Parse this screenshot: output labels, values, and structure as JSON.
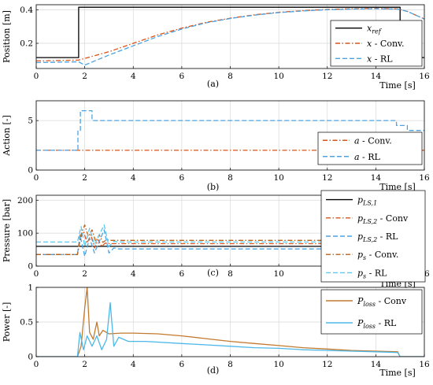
{
  "chart_data": [
    {
      "type": "line",
      "panel": "(a)",
      "xlabel": "Time [s]",
      "ylabel": "Position [m]",
      "xlim": [
        0,
        16
      ],
      "ylim": [
        0.05,
        0.43
      ],
      "xticks": [
        0,
        2,
        4,
        6,
        8,
        10,
        12,
        14,
        16
      ],
      "yticks": [
        0.2,
        0.4
      ],
      "ytick_labels": [
        "0.2",
        "0.4"
      ],
      "grid": true,
      "legend_position": "right",
      "series": [
        {
          "key": "x_ref",
          "label_main": "x",
          "label_sub": "ref",
          "label_suffix": "",
          "color": "#000000",
          "style": "solid",
          "x": [
            0,
            1.75,
            1.75,
            15.0,
            15.0,
            16
          ],
          "y": [
            0.115,
            0.115,
            0.415,
            0.415,
            0.115,
            0.115
          ]
        },
        {
          "key": "x_conv",
          "label_main": "x",
          "label_sub": "",
          "label_suffix": " - Conv.",
          "color": "#D95319",
          "style": "dashdot",
          "x": [
            0,
            1.75,
            2,
            3,
            4,
            5,
            6,
            7,
            8,
            9,
            10,
            11,
            12,
            13,
            14,
            14.9,
            15.3,
            16
          ],
          "y": [
            0.095,
            0.1,
            0.11,
            0.15,
            0.2,
            0.25,
            0.29,
            0.325,
            0.35,
            0.37,
            0.385,
            0.395,
            0.402,
            0.406,
            0.408,
            0.405,
            0.39,
            0.345
          ]
        },
        {
          "key": "x_rl",
          "label_main": "x",
          "label_sub": "",
          "label_suffix": " - RL",
          "color": "#4DA3E0",
          "style": "dashed",
          "x": [
            0,
            1.75,
            2,
            3,
            4,
            5,
            6,
            7,
            8,
            9,
            10,
            11,
            12,
            13,
            14,
            14.9,
            15.3,
            16
          ],
          "y": [
            0.085,
            0.09,
            0.07,
            0.13,
            0.185,
            0.24,
            0.285,
            0.322,
            0.348,
            0.368,
            0.383,
            0.393,
            0.4,
            0.404,
            0.406,
            0.404,
            0.39,
            0.345
          ]
        }
      ]
    },
    {
      "type": "line",
      "panel": "(b)",
      "xlabel": "Time [s]",
      "ylabel": "Action [-]",
      "xlim": [
        0,
        16
      ],
      "ylim": [
        0,
        7
      ],
      "xticks": [
        0,
        2,
        4,
        6,
        8,
        10,
        12,
        14,
        16
      ],
      "yticks": [
        0,
        5
      ],
      "ytick_labels": [
        "0",
        "5"
      ],
      "grid": true,
      "legend_position": "lower right",
      "series": [
        {
          "key": "a_conv",
          "label_main": "a",
          "label_sub": "",
          "label_suffix": " - Conv.",
          "color": "#D95319",
          "style": "dashdot",
          "x": [
            0,
            16
          ],
          "y": [
            2,
            2
          ]
        },
        {
          "key": "a_rl",
          "label_main": "a",
          "label_sub": "",
          "label_suffix": " - RL",
          "color": "#4DA3E0",
          "style": "dashed",
          "x": [
            0,
            1.72,
            1.72,
            1.82,
            1.82,
            2.3,
            2.3,
            14.85,
            14.85,
            15.3,
            15.3,
            16
          ],
          "y": [
            2,
            2,
            4,
            4,
            6,
            6,
            5,
            5,
            4.5,
            4.5,
            4,
            4
          ]
        }
      ]
    },
    {
      "type": "line",
      "panel": "(c)",
      "xlabel": "Time [s]",
      "ylabel": "Pressure [bar]",
      "xlim": [
        0,
        16
      ],
      "ylim": [
        0,
        215
      ],
      "xticks": [
        0,
        2,
        4,
        6,
        8,
        10,
        12,
        14,
        16
      ],
      "yticks": [
        0,
        100,
        200
      ],
      "ytick_labels": [
        "0",
        "100",
        "200"
      ],
      "grid": true,
      "legend_position": "right",
      "series": [
        {
          "key": "p_ls1",
          "label_main": "p",
          "label_sub": "LS,1",
          "label_suffix": "",
          "color": "#000000",
          "style": "solid",
          "x": [
            0,
            15.7,
            15.7,
            16
          ],
          "y": [
            60,
            60,
            200,
            200
          ]
        },
        {
          "key": "p_ls2_conv",
          "label_main": "p",
          "label_sub": "LS,2",
          "label_suffix": " - Conv",
          "color": "#D95319",
          "style": "dashdot",
          "x": [
            0,
            1.7,
            1.8,
            1.95,
            2.1,
            2.25,
            2.4,
            2.55,
            2.7,
            2.85,
            3.0,
            16
          ],
          "y": [
            35,
            35,
            80,
            105,
            70,
            95,
            55,
            80,
            60,
            70,
            68,
            68
          ]
        },
        {
          "key": "p_ls2_rl",
          "label_main": "p",
          "label_sub": "LS,2",
          "label_suffix": " - RL",
          "color": "#4DA3E0",
          "style": "dashed",
          "x": [
            0,
            1.7,
            1.8,
            2.0,
            2.2,
            2.4,
            2.6,
            2.8,
            3.0,
            3.2,
            3.4,
            16
          ],
          "y": [
            35,
            35,
            95,
            30,
            85,
            40,
            75,
            110,
            40,
            55,
            52,
            52
          ]
        },
        {
          "key": "p_s_conv",
          "label_main": "p",
          "label_sub": "s",
          "label_suffix": " - Conv.",
          "color": "#B8621A",
          "style": "dashdot",
          "x": [
            0,
            1.7,
            1.85,
            2.0,
            2.15,
            2.3,
            2.45,
            2.6,
            2.75,
            2.9,
            3.1,
            16
          ],
          "y": [
            35,
            35,
            95,
            125,
            90,
            110,
            75,
            95,
            72,
            80,
            78,
            78
          ]
        },
        {
          "key": "p_s_rl",
          "label_main": "p",
          "label_sub": "s",
          "label_suffix": " - RL",
          "color": "#5FC8EE",
          "style": "dashed",
          "x": [
            0,
            1.7,
            1.85,
            2.0,
            2.2,
            2.4,
            2.6,
            2.8,
            3.0,
            3.2,
            3.4,
            16
          ],
          "y": [
            73,
            73,
            120,
            60,
            115,
            65,
            95,
            125,
            60,
            75,
            73,
            73
          ]
        }
      ]
    },
    {
      "type": "line",
      "panel": "(d)",
      "xlabel": "Time [s]",
      "ylabel": "Power [-]",
      "xlim": [
        0,
        16
      ],
      "ylim": [
        0,
        1
      ],
      "xticks": [
        0,
        2,
        4,
        6,
        8,
        10,
        12,
        14,
        16
      ],
      "yticks": [
        0,
        0.5,
        1
      ],
      "ytick_labels": [
        "0",
        "0.5",
        "1"
      ],
      "grid": true,
      "legend_position": "top-right",
      "series": [
        {
          "key": "p_loss_conv",
          "label_main": "P",
          "label_sub": "loss",
          "label_suffix": " - Conv",
          "color": "#C27A2E",
          "style": "solid",
          "x": [
            0,
            1.7,
            1.85,
            2.0,
            2.1,
            2.2,
            2.35,
            2.5,
            2.6,
            2.75,
            3.0,
            3.5,
            4.0,
            5,
            6,
            7,
            8,
            9,
            10,
            11,
            12,
            13,
            14,
            14.9,
            15.0,
            16
          ],
          "y": [
            0,
            0,
            0.15,
            0.7,
            1.0,
            0.35,
            0.25,
            0.5,
            0.3,
            0.38,
            0.33,
            0.34,
            0.34,
            0.33,
            0.3,
            0.26,
            0.22,
            0.19,
            0.16,
            0.13,
            0.11,
            0.09,
            0.08,
            0.07,
            0.0,
            0.0
          ]
        },
        {
          "key": "p_loss_rl",
          "label_main": "P",
          "label_sub": "loss",
          "label_suffix": " - RL",
          "color": "#4DB8E8",
          "style": "solid",
          "x": [
            0,
            1.7,
            1.8,
            1.95,
            2.1,
            2.3,
            2.5,
            2.7,
            2.9,
            3.05,
            3.2,
            3.4,
            3.8,
            4.5,
            6,
            7,
            8,
            9,
            10,
            11,
            12,
            13,
            14,
            14.9,
            15.0,
            16
          ],
          "y": [
            0,
            0,
            0.35,
            0.1,
            0.3,
            0.15,
            0.3,
            0.1,
            0.25,
            0.78,
            0.15,
            0.28,
            0.22,
            0.22,
            0.19,
            0.17,
            0.15,
            0.13,
            0.12,
            0.1,
            0.09,
            0.08,
            0.07,
            0.06,
            0.0,
            0.0
          ]
        }
      ]
    }
  ]
}
